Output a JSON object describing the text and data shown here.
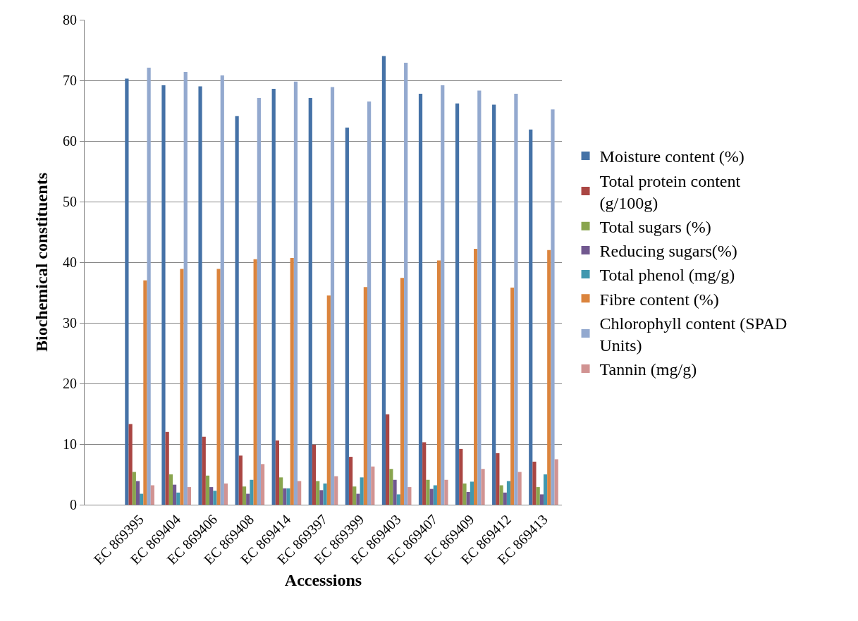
{
  "chart_data": {
    "type": "bar",
    "xlabel": "Accessions",
    "ylabel": "Biochemical constituents",
    "categories": [
      null,
      "EC 869395",
      "EC 869404",
      "EC 869406",
      "EC 869408",
      "EC 869414",
      "EC 869397",
      "EC 869399",
      "EC 869403",
      "EC 869407",
      "EC 869409",
      "EC 869412",
      "EC 869413"
    ],
    "series": [
      {
        "name": "Moisture content (%)",
        "color": "#4572a7",
        "values": [
          null,
          70.3,
          69.2,
          69.0,
          64.1,
          68.6,
          67.1,
          62.2,
          74.0,
          67.8,
          66.2,
          66.0,
          61.9
        ]
      },
      {
        "name": "Total protein content (g/100g)",
        "color": "#aa4643",
        "values": [
          null,
          13.3,
          12.0,
          11.2,
          8.1,
          10.6,
          9.9,
          7.9,
          14.9,
          10.3,
          9.2,
          8.5,
          7.1
        ]
      },
      {
        "name": "Total sugars (%)",
        "color": "#89a54e",
        "values": [
          null,
          5.4,
          5.0,
          4.8,
          3.0,
          4.5,
          3.9,
          3.0,
          5.9,
          4.1,
          3.5,
          3.2,
          2.9
        ]
      },
      {
        "name": "Reducing sugars(%)",
        "color": "#71588f",
        "values": [
          null,
          3.9,
          3.3,
          2.9,
          1.8,
          2.7,
          2.4,
          1.8,
          4.1,
          2.6,
          2.1,
          2.0,
          1.7
        ]
      },
      {
        "name": "Total phenol (mg/g)",
        "color": "#4198af",
        "values": [
          null,
          1.8,
          2.0,
          2.3,
          4.1,
          2.7,
          3.5,
          4.5,
          1.7,
          3.2,
          3.8,
          3.9,
          5.0
        ]
      },
      {
        "name": "Fibre content (%)",
        "color": "#db843d",
        "values": [
          null,
          37.0,
          38.9,
          38.9,
          40.5,
          40.7,
          34.5,
          35.9,
          37.4,
          40.3,
          42.2,
          35.8,
          42.0
        ]
      },
      {
        "name": "Chlorophyll content (SPAD Units)",
        "color": "#93a9cf",
        "values": [
          null,
          72.1,
          71.4,
          70.8,
          67.1,
          69.8,
          68.9,
          66.5,
          72.9,
          69.2,
          68.3,
          67.8,
          65.2
        ]
      },
      {
        "name": "Tannin (mg/g)",
        "color": "#d19392",
        "values": [
          null,
          3.2,
          2.9,
          3.5,
          6.7,
          3.9,
          4.7,
          6.3,
          2.9,
          4.1,
          5.9,
          5.4,
          7.5
        ]
      }
    ],
    "ylim": [
      0,
      80
    ],
    "yticks": [
      0,
      10,
      20,
      30,
      40,
      50,
      60,
      70,
      80
    ],
    "grid": "y",
    "legend": "right"
  }
}
